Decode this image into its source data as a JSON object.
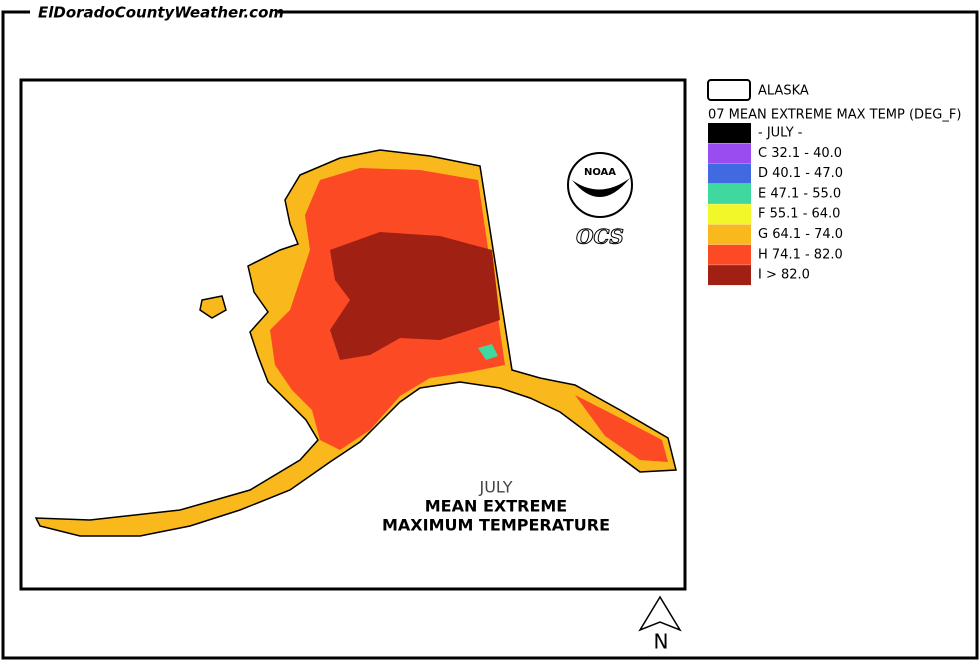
{
  "header": {
    "site": "ElDoradoCountyWeather.com"
  },
  "legend": {
    "layer": "ALASKA",
    "title": "07 MEAN EXTREME MAX TEMP (DEG_F)",
    "items": [
      {
        "label": "- JULY -",
        "color": "#000000"
      },
      {
        "label": "C 32.1 - 40.0",
        "color": "#9b4cf0"
      },
      {
        "label": "D 40.1 - 47.0",
        "color": "#4169e1"
      },
      {
        "label": "E 47.1 - 55.0",
        "color": "#3fd9a0"
      },
      {
        "label": "F 55.1 - 64.0",
        "color": "#f2f72a"
      },
      {
        "label": "G 64.1 - 74.0",
        "color": "#f9b81b"
      },
      {
        "label": "H 74.1 - 82.0",
        "color": "#fb4a24"
      },
      {
        "label": "I > 82.0",
        "color": "#a02013"
      }
    ]
  },
  "map": {
    "title_lines": [
      "JULY",
      "MEAN EXTREME",
      "MAXIMUM TEMPERATURE"
    ],
    "logo": {
      "agency": "NOAA",
      "office": "OCS"
    },
    "north": "N"
  }
}
